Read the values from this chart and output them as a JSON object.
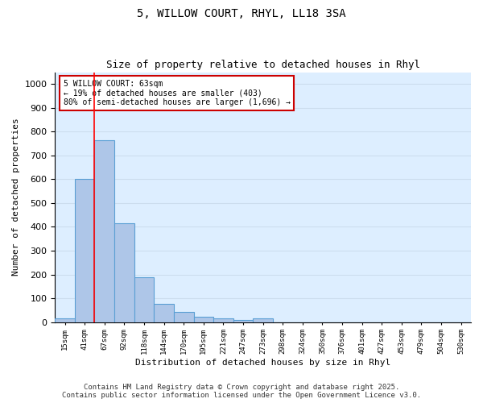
{
  "title_line1": "5, WILLOW COURT, RHYL, LL18 3SA",
  "title_line2": "Size of property relative to detached houses in Rhyl",
  "xlabel": "Distribution of detached houses by size in Rhyl",
  "ylabel": "Number of detached properties",
  "categories": [
    "15sqm",
    "41sqm",
    "67sqm",
    "92sqm",
    "118sqm",
    "144sqm",
    "170sqm",
    "195sqm",
    "221sqm",
    "247sqm",
    "273sqm",
    "298sqm",
    "324sqm",
    "350sqm",
    "376sqm",
    "401sqm",
    "427sqm",
    "453sqm",
    "479sqm",
    "504sqm",
    "530sqm"
  ],
  "values": [
    15,
    600,
    765,
    415,
    188,
    75,
    42,
    22,
    15,
    10,
    15,
    0,
    0,
    0,
    0,
    0,
    0,
    0,
    0,
    0,
    0
  ],
  "bar_color": "#aec6e8",
  "bar_edgecolor": "#5a9fd4",
  "bar_linewidth": 0.8,
  "redline_x": 1.5,
  "annotation_label": "5 WILLOW COURT: 63sqm",
  "annotation_line2": "← 19% of detached houses are smaller (403)",
  "annotation_line3": "80% of semi-detached houses are larger (1,696) →",
  "annotation_fontsize": 7.0,
  "annotation_box_color": "#ffffff",
  "annotation_box_edgecolor": "#cc0000",
  "ylim": [
    0,
    1050
  ],
  "yticks": [
    0,
    100,
    200,
    300,
    400,
    500,
    600,
    700,
    800,
    900,
    1000
  ],
  "grid_color": "#ccddee",
  "bg_color": "#ddeeff",
  "footer_line1": "Contains HM Land Registry data © Crown copyright and database right 2025.",
  "footer_line2": "Contains public sector information licensed under the Open Government Licence v3.0.",
  "footer_fontsize": 6.5,
  "title1_fontsize": 10,
  "title2_fontsize": 9,
  "xlabel_fontsize": 8,
  "ylabel_fontsize": 8,
  "xtick_fontsize": 6.5,
  "ytick_fontsize": 8
}
